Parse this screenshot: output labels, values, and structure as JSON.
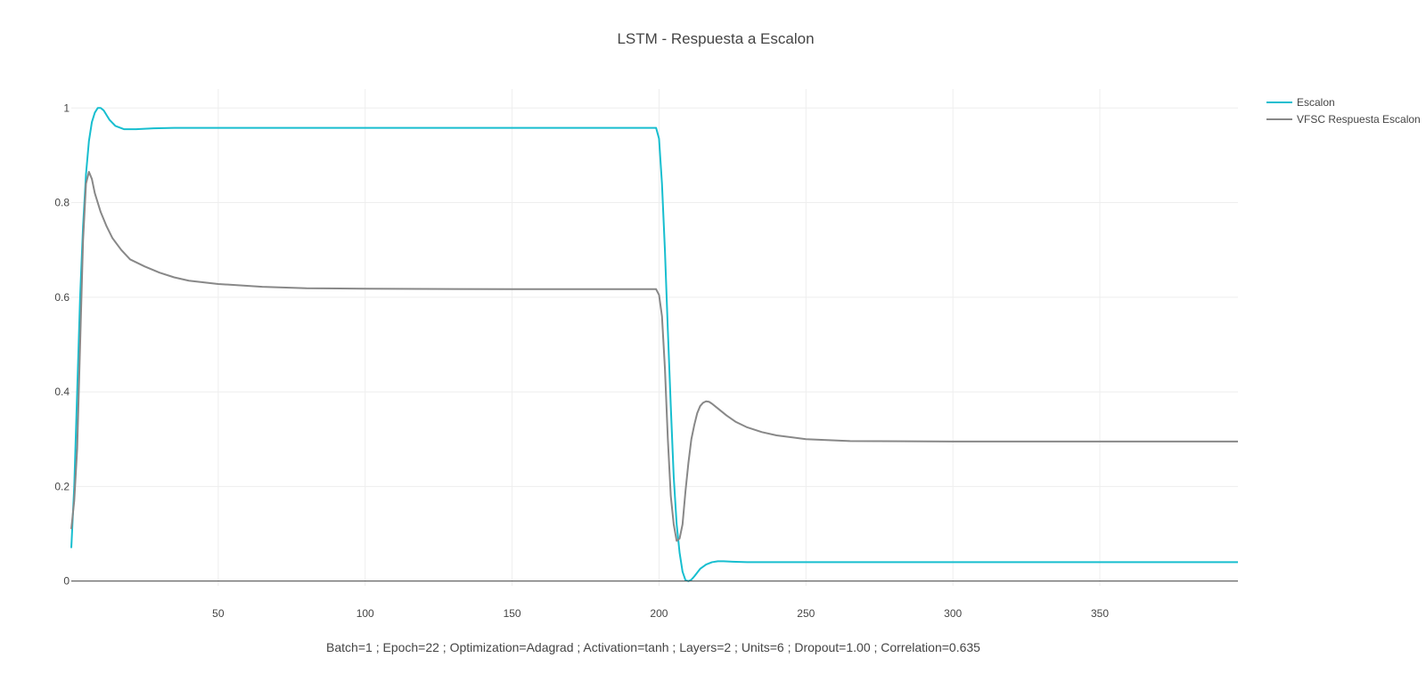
{
  "chart_data": {
    "type": "line",
    "title": "LSTM - Respuesta a Escalon",
    "xlabel": "Batch=1 ; Epoch=22 ; Optimization=Adagrad ; Activation=tanh ; Layers=2 ; Units=6 ; Dropout=1.00 ; Correlation=0.635",
    "ylabel": "",
    "xlim": [
      0,
      397
    ],
    "ylim": [
      -0.01,
      1.04
    ],
    "x_ticks": [
      50,
      100,
      150,
      200,
      250,
      300,
      350
    ],
    "y_ticks": [
      0,
      0.2,
      0.4,
      0.6,
      0.8,
      1
    ],
    "y_tick_labels": [
      "0",
      "0.2",
      "0.4",
      "0.6",
      "0.8",
      "1"
    ],
    "grid": true,
    "legend_position": "top-right",
    "series": [
      {
        "name": "Escalon",
        "color": "#17becf",
        "x": [
          0,
          1,
          2,
          3,
          4,
          5,
          6,
          7,
          8,
          9,
          10,
          11,
          12,
          13,
          15,
          18,
          22,
          28,
          35,
          45,
          60,
          100,
          150,
          199,
          200,
          201,
          202,
          203,
          204,
          205,
          206,
          207,
          208,
          209,
          210,
          211,
          212,
          213,
          214,
          216,
          218,
          220,
          222,
          225,
          230,
          240,
          260,
          300,
          350,
          397
        ],
        "y": [
          0.07,
          0.2,
          0.4,
          0.6,
          0.75,
          0.86,
          0.93,
          0.97,
          0.99,
          1.0,
          1.0,
          0.995,
          0.985,
          0.975,
          0.962,
          0.955,
          0.955,
          0.957,
          0.958,
          0.958,
          0.958,
          0.958,
          0.958,
          0.958,
          0.935,
          0.84,
          0.7,
          0.53,
          0.37,
          0.22,
          0.12,
          0.06,
          0.02,
          0.002,
          0.0,
          0.003,
          0.01,
          0.018,
          0.026,
          0.035,
          0.04,
          0.042,
          0.042,
          0.041,
          0.04,
          0.04,
          0.04,
          0.04,
          0.04,
          0.04
        ]
      },
      {
        "name": "VFSC Respuesta Escalon",
        "color": "#888888",
        "x": [
          0,
          1,
          2,
          3,
          4,
          5,
          6,
          7,
          8,
          10,
          12,
          14,
          17,
          20,
          25,
          30,
          35,
          40,
          50,
          65,
          80,
          100,
          150,
          198,
          199,
          200,
          201,
          202,
          203,
          204,
          205,
          206,
          207,
          208,
          209,
          210,
          211,
          212,
          213,
          214,
          215,
          216,
          217,
          218,
          220,
          223,
          226,
          230,
          235,
          240,
          250,
          265,
          300,
          350,
          397
        ],
        "y": [
          0.11,
          0.17,
          0.28,
          0.5,
          0.72,
          0.84,
          0.865,
          0.85,
          0.82,
          0.78,
          0.75,
          0.725,
          0.7,
          0.68,
          0.665,
          0.652,
          0.642,
          0.635,
          0.628,
          0.622,
          0.619,
          0.618,
          0.617,
          0.617,
          0.617,
          0.605,
          0.56,
          0.45,
          0.3,
          0.18,
          0.12,
          0.085,
          0.09,
          0.12,
          0.19,
          0.25,
          0.3,
          0.33,
          0.355,
          0.37,
          0.377,
          0.38,
          0.379,
          0.375,
          0.365,
          0.35,
          0.337,
          0.325,
          0.315,
          0.308,
          0.3,
          0.296,
          0.295,
          0.295,
          0.295
        ]
      }
    ]
  }
}
